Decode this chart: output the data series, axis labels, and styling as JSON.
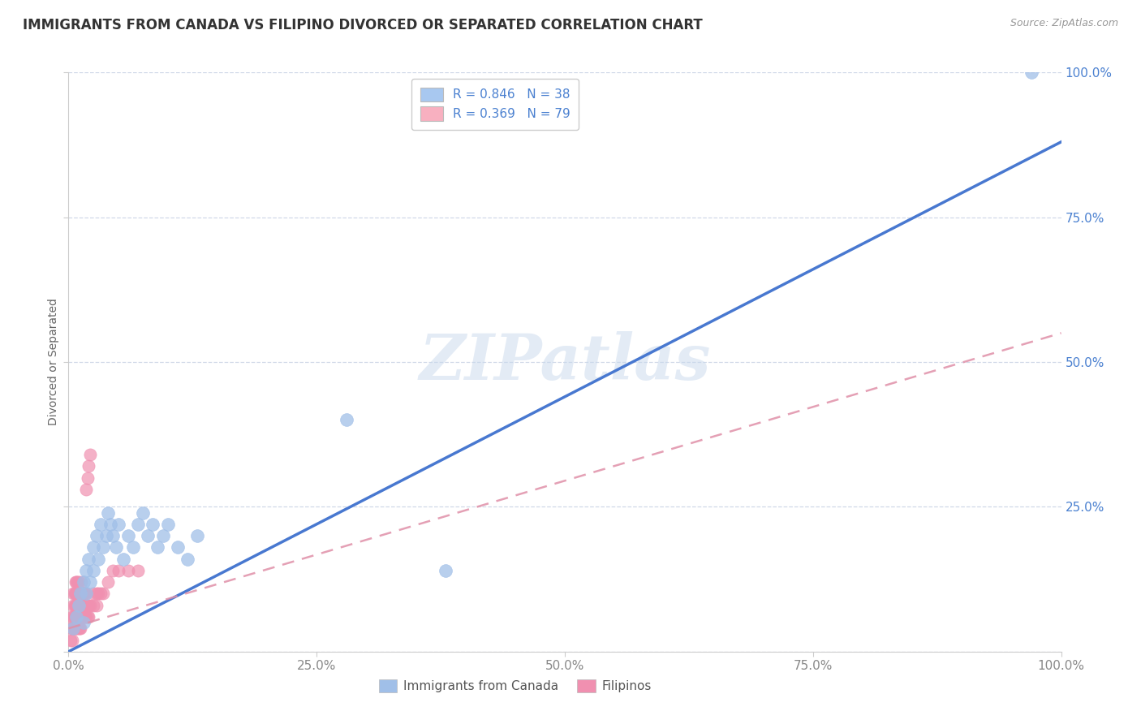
{
  "title": "IMMIGRANTS FROM CANADA VS FILIPINO DIVORCED OR SEPARATED CORRELATION CHART",
  "source": "Source: ZipAtlas.com",
  "ylabel": "Divorced or Separated",
  "watermark": "ZIPatlas",
  "legend_entries": [
    {
      "label": "R = 0.846   N = 38",
      "color": "#a8c8f0"
    },
    {
      "label": "R = 0.369   N = 79",
      "color": "#f8b0c0"
    }
  ],
  "blue_scatter": [
    [
      0.005,
      0.04
    ],
    [
      0.008,
      0.06
    ],
    [
      0.01,
      0.08
    ],
    [
      0.012,
      0.1
    ],
    [
      0.015,
      0.05
    ],
    [
      0.015,
      0.12
    ],
    [
      0.018,
      0.14
    ],
    [
      0.018,
      0.1
    ],
    [
      0.02,
      0.16
    ],
    [
      0.022,
      0.12
    ],
    [
      0.025,
      0.18
    ],
    [
      0.025,
      0.14
    ],
    [
      0.028,
      0.2
    ],
    [
      0.03,
      0.16
    ],
    [
      0.032,
      0.22
    ],
    [
      0.035,
      0.18
    ],
    [
      0.038,
      0.2
    ],
    [
      0.04,
      0.24
    ],
    [
      0.042,
      0.22
    ],
    [
      0.045,
      0.2
    ],
    [
      0.048,
      0.18
    ],
    [
      0.05,
      0.22
    ],
    [
      0.055,
      0.16
    ],
    [
      0.06,
      0.2
    ],
    [
      0.065,
      0.18
    ],
    [
      0.07,
      0.22
    ],
    [
      0.075,
      0.24
    ],
    [
      0.08,
      0.2
    ],
    [
      0.085,
      0.22
    ],
    [
      0.09,
      0.18
    ],
    [
      0.095,
      0.2
    ],
    [
      0.1,
      0.22
    ],
    [
      0.11,
      0.18
    ],
    [
      0.12,
      0.16
    ],
    [
      0.13,
      0.2
    ],
    [
      0.28,
      0.4
    ],
    [
      0.38,
      0.14
    ],
    [
      0.97,
      1.0
    ]
  ],
  "pink_scatter": [
    [
      0.002,
      0.02
    ],
    [
      0.003,
      0.04
    ],
    [
      0.003,
      0.06
    ],
    [
      0.004,
      0.02
    ],
    [
      0.004,
      0.04
    ],
    [
      0.005,
      0.06
    ],
    [
      0.005,
      0.08
    ],
    [
      0.005,
      0.1
    ],
    [
      0.006,
      0.04
    ],
    [
      0.006,
      0.06
    ],
    [
      0.006,
      0.08
    ],
    [
      0.006,
      0.1
    ],
    [
      0.007,
      0.04
    ],
    [
      0.007,
      0.06
    ],
    [
      0.007,
      0.08
    ],
    [
      0.007,
      0.1
    ],
    [
      0.007,
      0.12
    ],
    [
      0.008,
      0.04
    ],
    [
      0.008,
      0.06
    ],
    [
      0.008,
      0.08
    ],
    [
      0.008,
      0.1
    ],
    [
      0.008,
      0.12
    ],
    [
      0.009,
      0.04
    ],
    [
      0.009,
      0.06
    ],
    [
      0.009,
      0.08
    ],
    [
      0.009,
      0.1
    ],
    [
      0.009,
      0.12
    ],
    [
      0.01,
      0.04
    ],
    [
      0.01,
      0.06
    ],
    [
      0.01,
      0.08
    ],
    [
      0.01,
      0.1
    ],
    [
      0.01,
      0.12
    ],
    [
      0.011,
      0.04
    ],
    [
      0.011,
      0.06
    ],
    [
      0.011,
      0.08
    ],
    [
      0.011,
      0.1
    ],
    [
      0.012,
      0.04
    ],
    [
      0.012,
      0.06
    ],
    [
      0.012,
      0.08
    ],
    [
      0.012,
      0.1
    ],
    [
      0.013,
      0.06
    ],
    [
      0.013,
      0.08
    ],
    [
      0.013,
      0.1
    ],
    [
      0.013,
      0.12
    ],
    [
      0.014,
      0.06
    ],
    [
      0.014,
      0.08
    ],
    [
      0.014,
      0.1
    ],
    [
      0.015,
      0.06
    ],
    [
      0.015,
      0.08
    ],
    [
      0.015,
      0.1
    ],
    [
      0.016,
      0.06
    ],
    [
      0.016,
      0.08
    ],
    [
      0.016,
      0.1
    ],
    [
      0.017,
      0.06
    ],
    [
      0.017,
      0.08
    ],
    [
      0.017,
      0.1
    ],
    [
      0.018,
      0.06
    ],
    [
      0.018,
      0.08
    ],
    [
      0.018,
      0.28
    ],
    [
      0.019,
      0.06
    ],
    [
      0.019,
      0.08
    ],
    [
      0.019,
      0.3
    ],
    [
      0.02,
      0.06
    ],
    [
      0.02,
      0.08
    ],
    [
      0.02,
      0.32
    ],
    [
      0.022,
      0.08
    ],
    [
      0.022,
      0.34
    ],
    [
      0.025,
      0.08
    ],
    [
      0.025,
      0.1
    ],
    [
      0.028,
      0.08
    ],
    [
      0.028,
      0.1
    ],
    [
      0.03,
      0.1
    ],
    [
      0.032,
      0.1
    ],
    [
      0.035,
      0.1
    ],
    [
      0.04,
      0.12
    ],
    [
      0.045,
      0.14
    ],
    [
      0.05,
      0.14
    ],
    [
      0.06,
      0.14
    ],
    [
      0.07,
      0.14
    ]
  ],
  "blue_line_x": [
    0.0,
    1.0
  ],
  "blue_line_y": [
    0.0,
    0.88
  ],
  "pink_line_x": [
    0.0,
    1.0
  ],
  "pink_line_y": [
    0.04,
    0.55
  ],
  "scatter_color_blue": "#a0bfe8",
  "scatter_color_pink": "#f090b0",
  "line_color_blue": "#4878d0",
  "line_color_pink": "#e090a8",
  "xlim": [
    0,
    1
  ],
  "ylim": [
    0,
    1
  ],
  "xticks": [
    0.0,
    0.25,
    0.5,
    0.75,
    1.0
  ],
  "yticks": [
    0.0,
    0.25,
    0.5,
    0.75,
    1.0
  ],
  "xticklabels": [
    "0.0%",
    "25.0%",
    "50.0%",
    "75.0%",
    "100.0%"
  ],
  "yticklabels_right": [
    "",
    "25.0%",
    "50.0%",
    "75.0%",
    "100.0%"
  ],
  "title_fontsize": 12,
  "source_fontsize": 9,
  "tick_fontsize": 11,
  "legend_fontsize": 11,
  "background_color": "#ffffff",
  "grid_color": "#d0d8e8",
  "tick_color_x": "#888888",
  "tick_color_y": "#4a80d0",
  "watermark_color": "#c8d8ec",
  "watermark_alpha": 0.5
}
